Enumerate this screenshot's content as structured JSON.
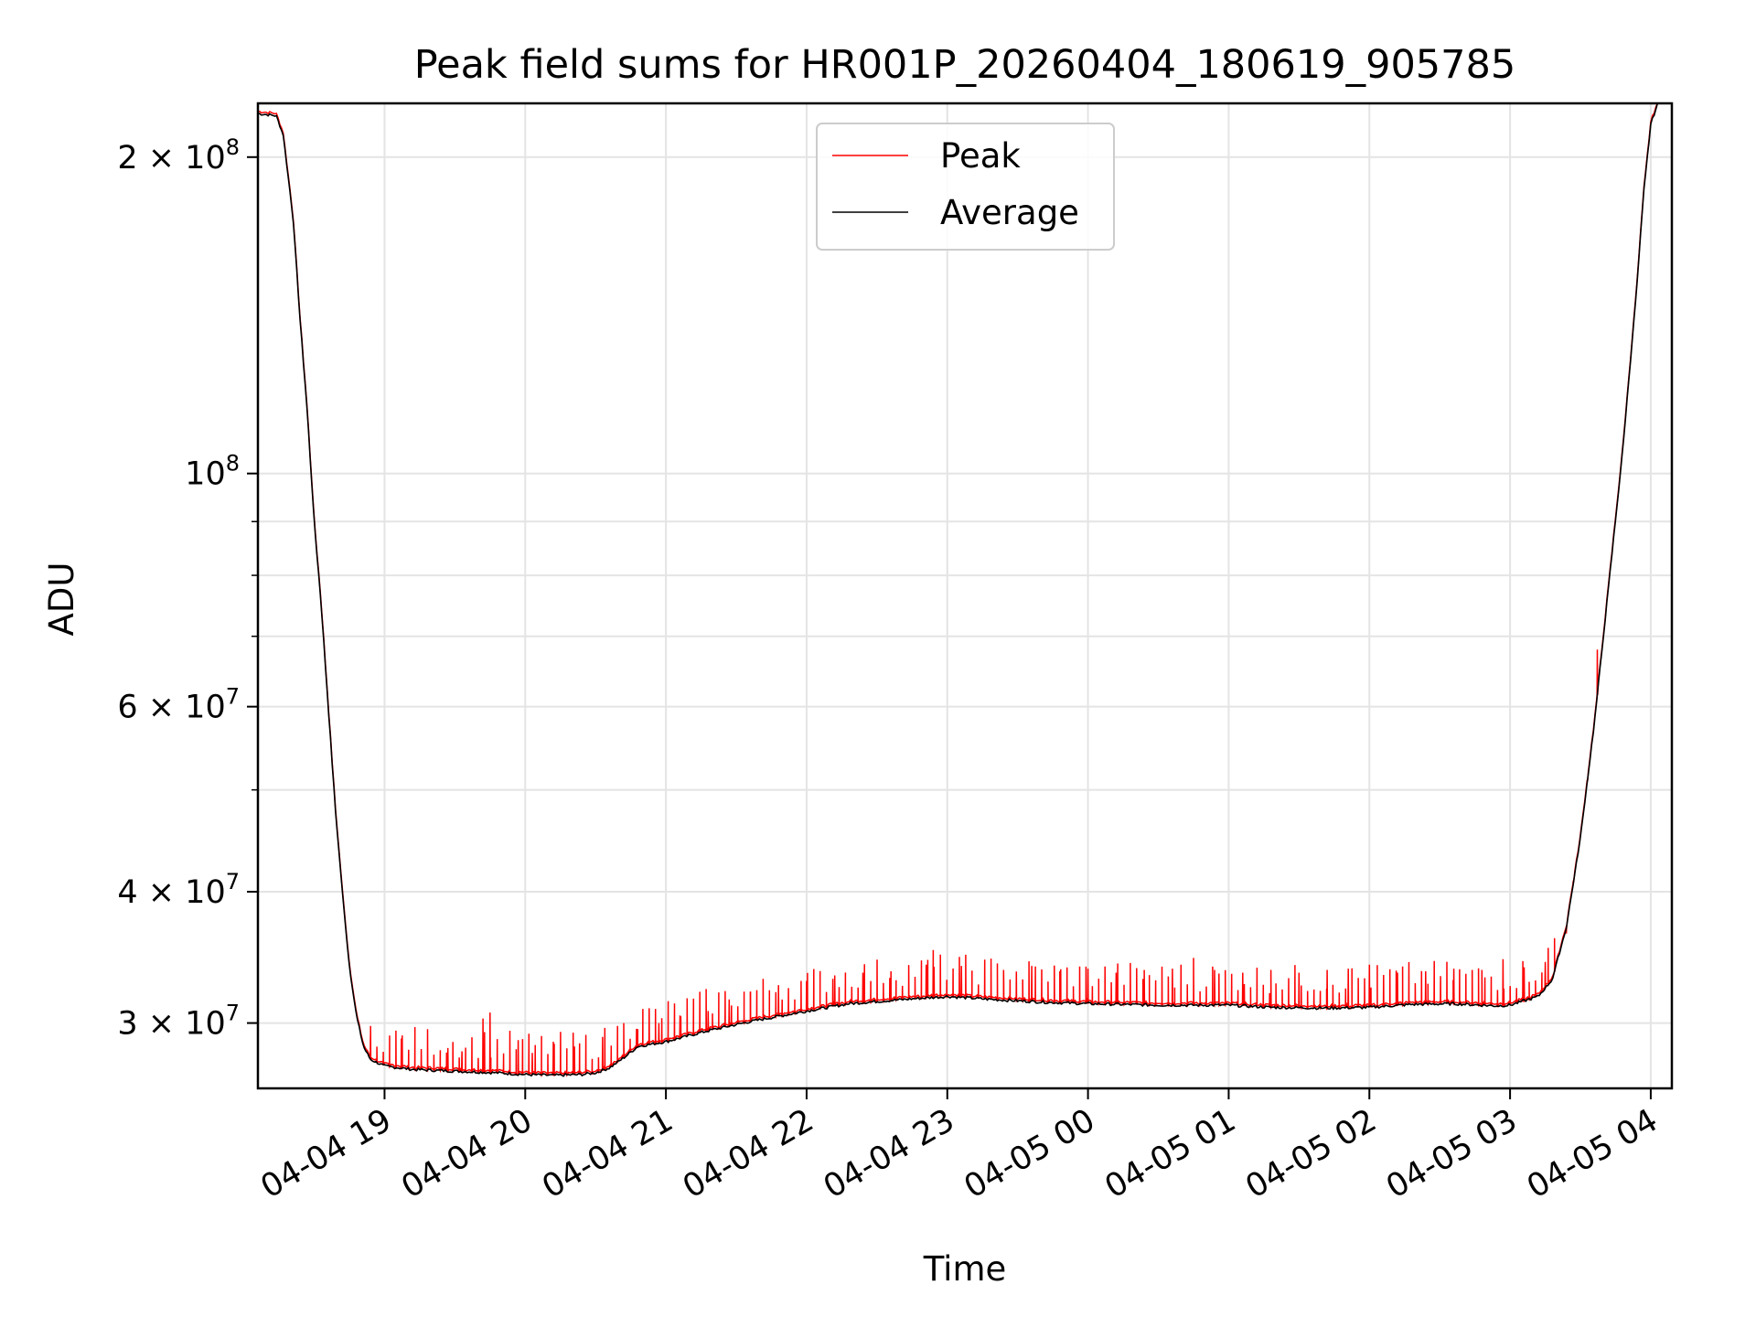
{
  "chart_data": {
    "type": "line",
    "title": "Peak field sums for HR001P_20260404_180619_905785",
    "xlabel": "Time",
    "ylabel": "ADU",
    "yscale": "log",
    "xlim": [
      -0.9,
      9.15
    ],
    "ylim": [
      26000000,
      225000000
    ],
    "grid": true,
    "legend_position": "top-center",
    "x_ticks": [
      {
        "value": 0,
        "label": "04-04 19"
      },
      {
        "value": 1,
        "label": "04-04 20"
      },
      {
        "value": 2,
        "label": "04-04 21"
      },
      {
        "value": 3,
        "label": "04-04 22"
      },
      {
        "value": 4,
        "label": "04-04 23"
      },
      {
        "value": 5,
        "label": "04-05 00"
      },
      {
        "value": 6,
        "label": "04-05 01"
      },
      {
        "value": 7,
        "label": "04-05 02"
      },
      {
        "value": 8,
        "label": "04-05 03"
      },
      {
        "value": 9,
        "label": "04-05 04"
      }
    ],
    "y_major_ticks": [
      {
        "value": 30000000,
        "mant": "3",
        "exp": "7"
      },
      {
        "value": 40000000,
        "mant": "4",
        "exp": "7"
      },
      {
        "value": 60000000,
        "mant": "6",
        "exp": "7"
      },
      {
        "value": 100000000,
        "mant": "",
        "exp": "8"
      },
      {
        "value": 200000000,
        "mant": "2",
        "exp": "8"
      }
    ],
    "y_minor_gridlines": [
      50000000,
      70000000,
      80000000,
      90000000
    ],
    "series": [
      {
        "name": "Average",
        "color": "#000000",
        "points": [
          [
            -0.9,
            220000000
          ],
          [
            -0.77,
            219000000
          ],
          [
            -0.72,
            210000000
          ],
          [
            -0.65,
            175000000
          ],
          [
            -0.6,
            140000000
          ],
          [
            -0.55,
            115000000
          ],
          [
            -0.5,
            90000000
          ],
          [
            -0.45,
            75000000
          ],
          [
            -0.4,
            60000000
          ],
          [
            -0.35,
            48000000
          ],
          [
            -0.3,
            40000000
          ],
          [
            -0.25,
            34000000
          ],
          [
            -0.2,
            30500000
          ],
          [
            -0.15,
            28500000
          ],
          [
            -0.1,
            27700000
          ],
          [
            0.0,
            27300000
          ],
          [
            0.2,
            27100000
          ],
          [
            0.5,
            27000000
          ],
          [
            0.8,
            26900000
          ],
          [
            1.0,
            26800000
          ],
          [
            1.2,
            26750000
          ],
          [
            1.4,
            26800000
          ],
          [
            1.5,
            26900000
          ],
          [
            1.6,
            27200000
          ],
          [
            1.7,
            27800000
          ],
          [
            1.8,
            28500000
          ],
          [
            2.0,
            28800000
          ],
          [
            2.3,
            29500000
          ],
          [
            2.6,
            30100000
          ],
          [
            3.0,
            30800000
          ],
          [
            3.3,
            31300000
          ],
          [
            3.7,
            31600000
          ],
          [
            4.0,
            31800000
          ],
          [
            4.3,
            31600000
          ],
          [
            4.7,
            31400000
          ],
          [
            5.0,
            31300000
          ],
          [
            5.5,
            31200000
          ],
          [
            6.0,
            31200000
          ],
          [
            6.3,
            31050000
          ],
          [
            6.7,
            31000000
          ],
          [
            7.0,
            31050000
          ],
          [
            7.3,
            31250000
          ],
          [
            7.6,
            31300000
          ],
          [
            7.9,
            31150000
          ],
          [
            8.0,
            31200000
          ],
          [
            8.1,
            31500000
          ],
          [
            8.2,
            31800000
          ],
          [
            8.3,
            33000000
          ],
          [
            8.4,
            37000000
          ],
          [
            8.5,
            45000000
          ],
          [
            8.6,
            58000000
          ],
          [
            8.7,
            78000000
          ],
          [
            8.8,
            105000000
          ],
          [
            8.9,
            150000000
          ],
          [
            8.95,
            185000000
          ],
          [
            9.0,
            215000000
          ],
          [
            9.05,
            225000000
          ]
        ]
      },
      {
        "name": "Peak",
        "color": "#ff0000",
        "spikes": [
          [
            -0.1,
            29200000
          ],
          [
            0.12,
            29000000
          ],
          [
            0.45,
            28400000
          ],
          [
            0.55,
            28200000
          ],
          [
            0.7,
            30300000
          ],
          [
            0.75,
            30700000
          ],
          [
            0.95,
            28900000
          ],
          [
            1.05,
            28100000
          ],
          [
            1.2,
            28800000
          ],
          [
            1.35,
            28500000
          ],
          [
            1.55,
            29100000
          ],
          [
            1.7,
            30000000
          ],
          [
            1.8,
            29600000
          ],
          [
            1.95,
            30000000
          ],
          [
            2.1,
            30500000
          ],
          [
            2.3,
            30800000
          ],
          [
            2.45,
            31600000
          ],
          [
            2.6,
            32100000
          ],
          [
            2.8,
            32600000
          ],
          [
            3.0,
            32900000
          ],
          [
            3.2,
            33300000
          ],
          [
            3.4,
            33500000
          ],
          [
            3.6,
            33600000
          ],
          [
            3.85,
            34100000
          ],
          [
            3.9,
            35200000
          ],
          [
            4.1,
            34000000
          ],
          [
            4.4,
            33700000
          ],
          [
            4.6,
            34000000
          ],
          [
            4.8,
            33600000
          ],
          [
            5.0,
            33800000
          ],
          [
            5.2,
            33500000
          ],
          [
            5.4,
            33700000
          ],
          [
            5.6,
            33800000
          ],
          [
            5.75,
            34600000
          ],
          [
            5.9,
            33700000
          ],
          [
            6.1,
            33500000
          ],
          [
            6.3,
            33700000
          ],
          [
            6.5,
            33500000
          ],
          [
            6.7,
            33700000
          ],
          [
            6.85,
            33800000
          ],
          [
            7.0,
            34100000
          ],
          [
            7.2,
            33500000
          ],
          [
            7.4,
            33600000
          ],
          [
            7.6,
            33800000
          ],
          [
            7.8,
            33700000
          ],
          [
            7.95,
            34500000
          ],
          [
            8.1,
            33900000
          ],
          [
            8.25,
            34300000
          ],
          [
            8.4,
            36500000
          ],
          [
            8.45,
            41000000
          ],
          [
            8.55,
            51000000
          ],
          [
            8.62,
            68000000
          ]
        ]
      }
    ],
    "legend": [
      {
        "label": "Peak",
        "color": "#ff0000"
      },
      {
        "label": "Average",
        "color": "#000000"
      }
    ]
  }
}
